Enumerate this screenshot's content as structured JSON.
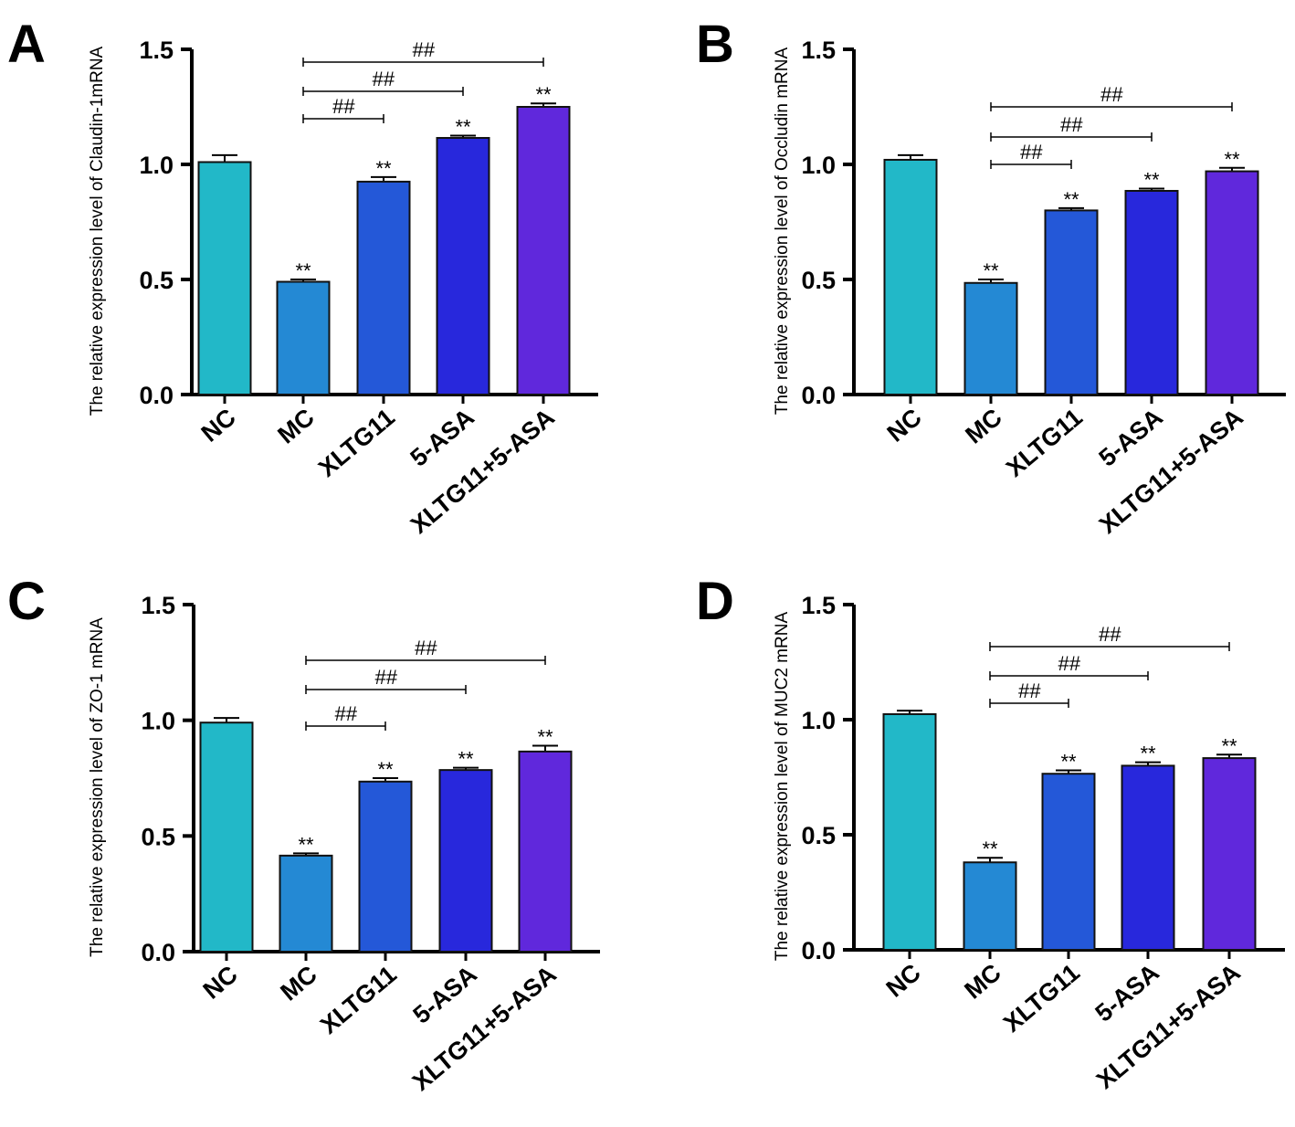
{
  "chart_data": [
    {
      "type": "bar",
      "panel": "A",
      "ylabel": "The relative expression level of Claudin-1mRNA",
      "categories": [
        "NC",
        "MC",
        "XLTG11",
        "5-ASA",
        "XLTG11+5-ASA"
      ],
      "values": [
        1.01,
        0.49,
        0.925,
        1.115,
        1.25
      ],
      "errors": [
        0.03,
        0.01,
        0.02,
        0.01,
        0.015
      ],
      "significance": [
        "",
        "**",
        "**",
        "**",
        "**"
      ],
      "comparisons": [
        {
          "from": "MC",
          "to": "XLTG11",
          "label": "##"
        },
        {
          "from": "MC",
          "to": "5-ASA",
          "label": "##"
        },
        {
          "from": "MC",
          "to": "XLTG11+5-ASA",
          "label": "##"
        }
      ],
      "ylim": [
        0,
        1.5
      ],
      "yticks": [
        "0.0",
        "0.5",
        "1.0",
        "1.5"
      ]
    },
    {
      "type": "bar",
      "panel": "B",
      "ylabel": "The relative expression level of Occludin mRNA",
      "categories": [
        "NC",
        "MC",
        "XLTG11",
        "5-ASA",
        "XLTG11+5-ASA"
      ],
      "values": [
        1.02,
        0.485,
        0.8,
        0.885,
        0.97
      ],
      "errors": [
        0.02,
        0.015,
        0.01,
        0.01,
        0.015
      ],
      "significance": [
        "",
        "**",
        "**",
        "**",
        "**"
      ],
      "comparisons": [
        {
          "from": "MC",
          "to": "XLTG11",
          "label": "##"
        },
        {
          "from": "MC",
          "to": "5-ASA",
          "label": "##"
        },
        {
          "from": "MC",
          "to": "XLTG11+5-ASA",
          "label": "##"
        }
      ],
      "ylim": [
        0,
        1.5
      ],
      "yticks": [
        "0.0",
        "0.5",
        "1.0",
        "1.5"
      ]
    },
    {
      "type": "bar",
      "panel": "C",
      "ylabel": "The relative expression level of ZO-1 mRNA",
      "categories": [
        "NC",
        "MC",
        "XLTG11",
        "5-ASA",
        "XLTG11+5-ASA"
      ],
      "values": [
        0.99,
        0.415,
        0.735,
        0.785,
        0.865
      ],
      "errors": [
        0.02,
        0.01,
        0.015,
        0.01,
        0.025
      ],
      "significance": [
        "",
        "**",
        "**",
        "**",
        "**"
      ],
      "comparisons": [
        {
          "from": "MC",
          "to": "XLTG11",
          "label": "##"
        },
        {
          "from": "MC",
          "to": "5-ASA",
          "label": "##"
        },
        {
          "from": "MC",
          "to": "XLTG11+5-ASA",
          "label": "##"
        }
      ],
      "ylim": [
        0,
        1.5
      ],
      "yticks": [
        "0.0",
        "0.5",
        "1.0",
        "1.5"
      ]
    },
    {
      "type": "bar",
      "panel": "D",
      "ylabel": "The relative expression level of MUC2 mRNA",
      "categories": [
        "NC",
        "MC",
        "XLTG11",
        "5-ASA",
        "XLTG11+5-ASA"
      ],
      "values": [
        1.024,
        0.38,
        0.765,
        0.8,
        0.833
      ],
      "errors": [
        0.015,
        0.02,
        0.015,
        0.015,
        0.015
      ],
      "significance": [
        "",
        "**",
        "**",
        "**",
        "**"
      ],
      "comparisons": [
        {
          "from": "MC",
          "to": "XLTG11",
          "label": "##"
        },
        {
          "from": "MC",
          "to": "5-ASA",
          "label": "##"
        },
        {
          "from": "MC",
          "to": "XLTG11+5-ASA",
          "label": "##"
        }
      ],
      "ylim": [
        0,
        1.5
      ],
      "yticks": [
        "0.0",
        "0.5",
        "1.0",
        "1.5"
      ]
    }
  ],
  "colors": [
    "#22b8c8",
    "#2489d4",
    "#2458d8",
    "#2828dc",
    "#6028dc"
  ]
}
